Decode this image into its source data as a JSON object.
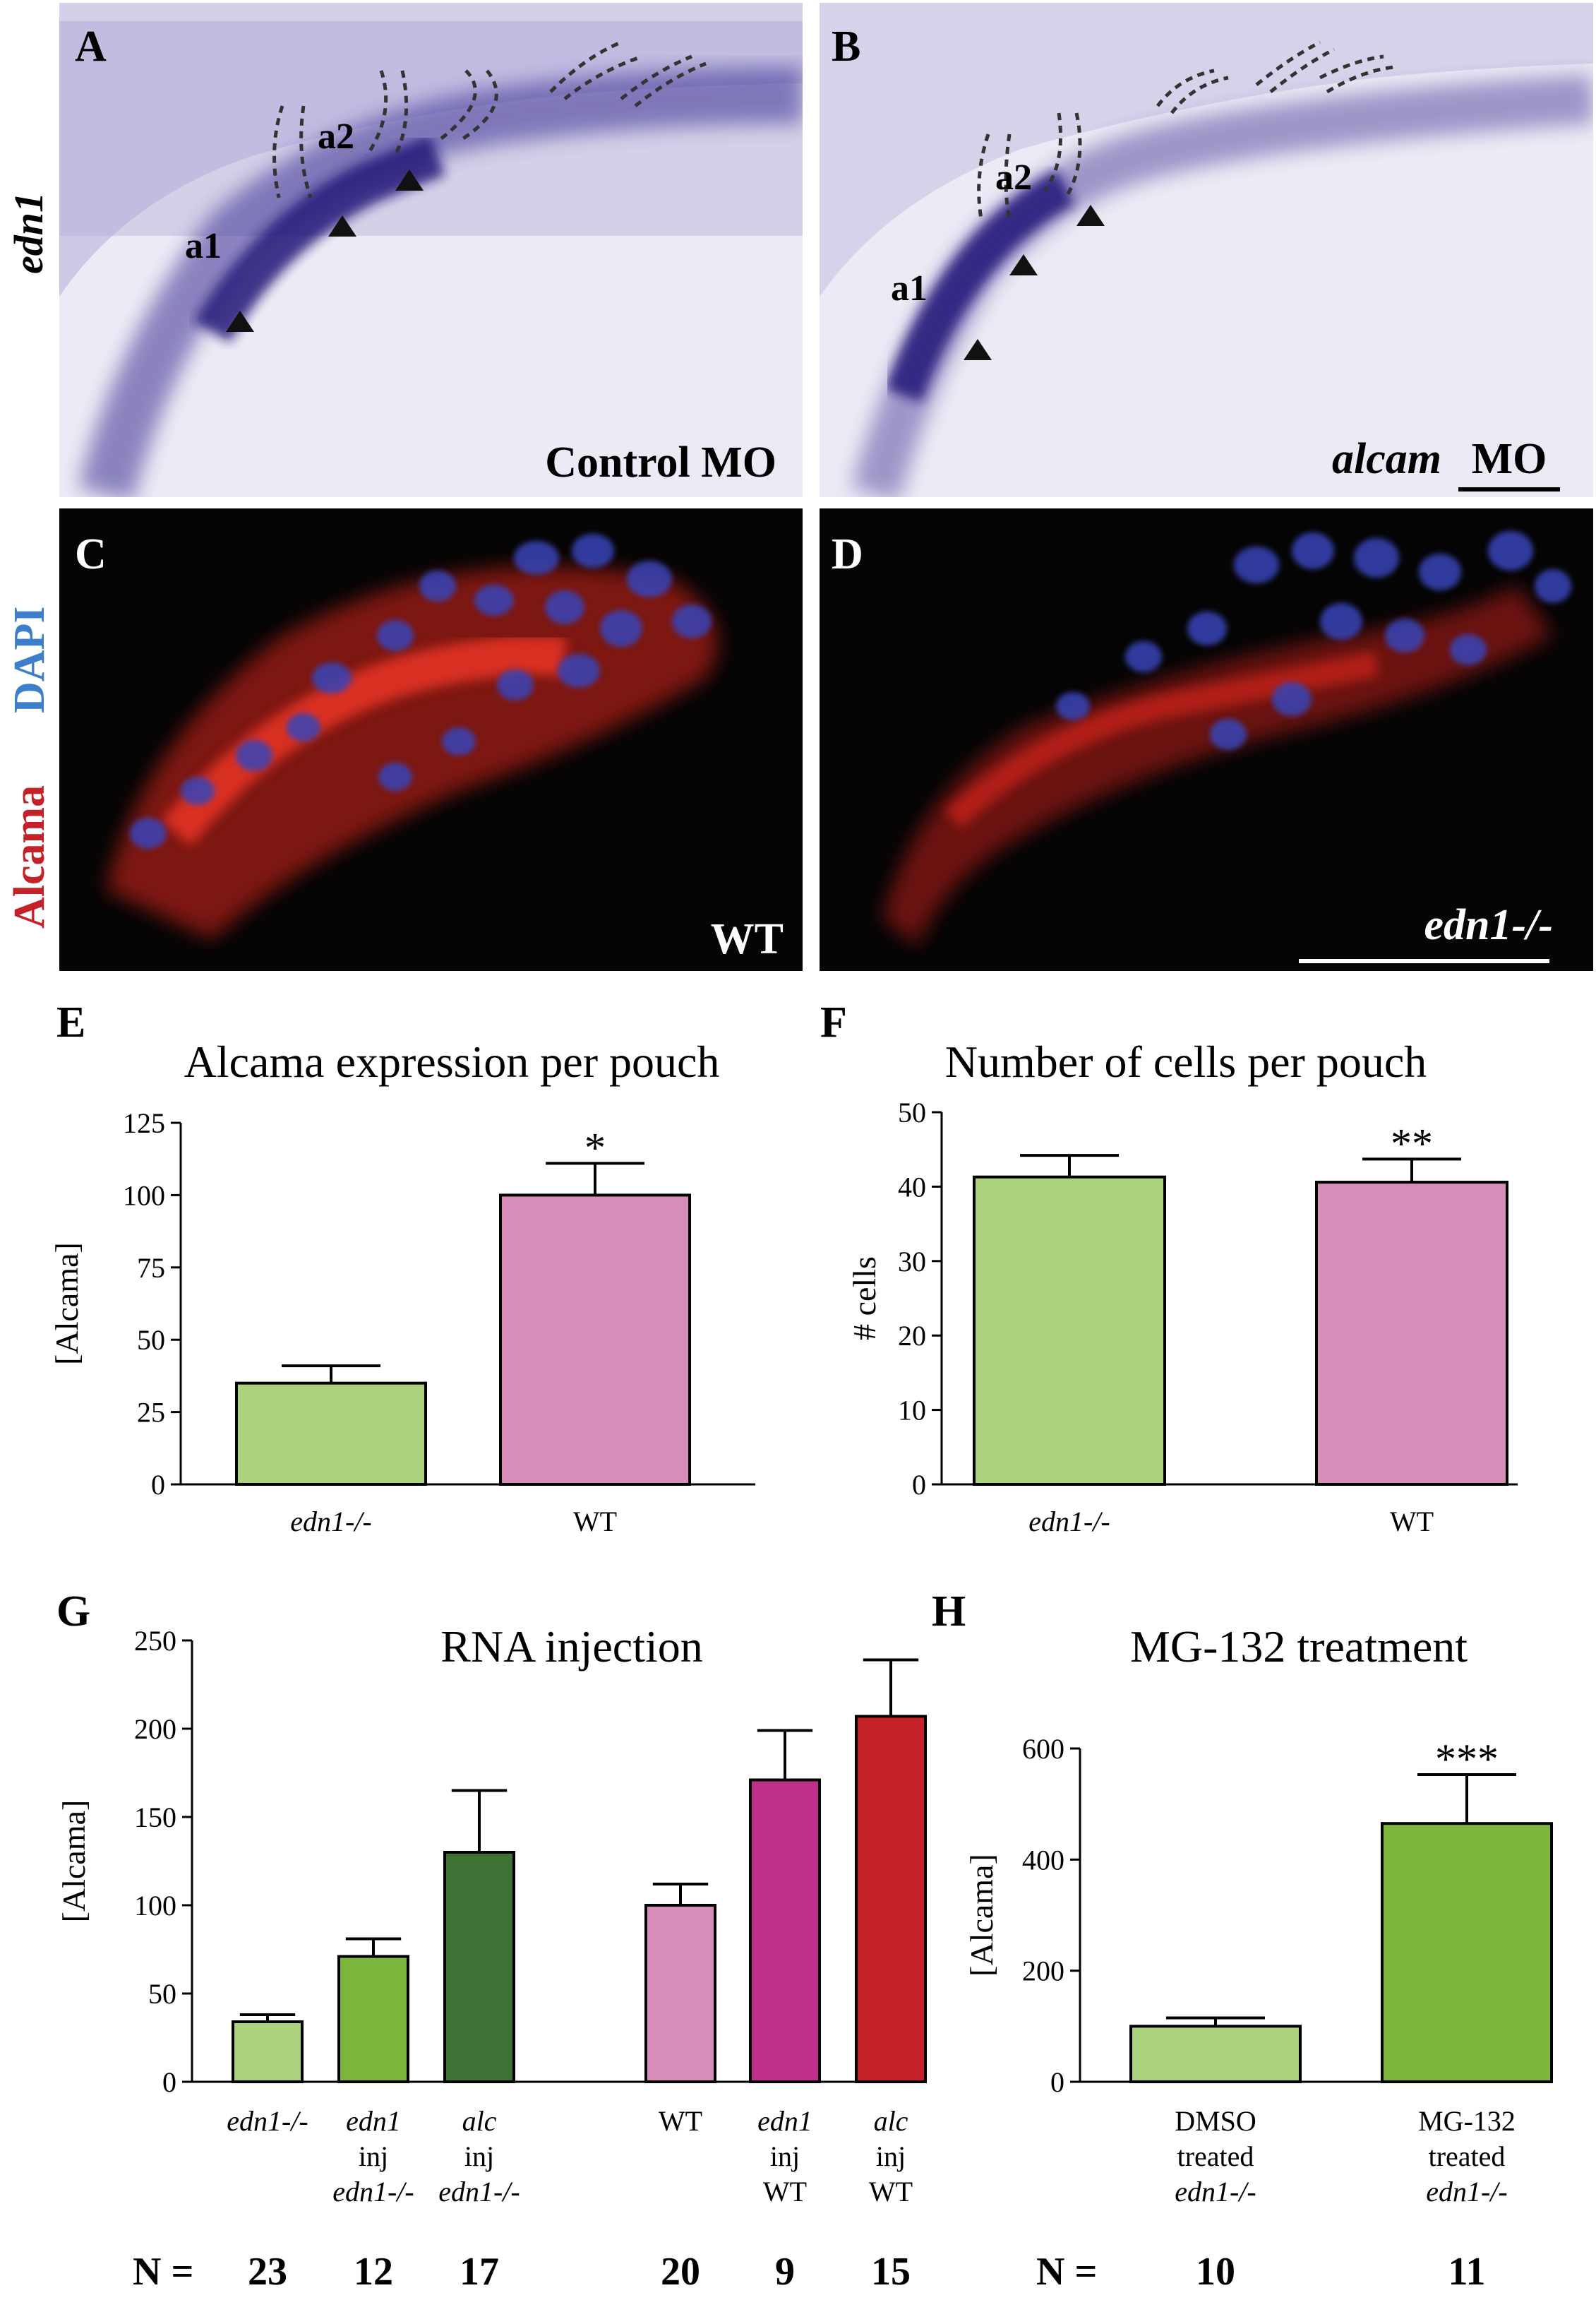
{
  "panels": {
    "A": {
      "letter": "A",
      "side_label": "edn1",
      "arch_labels": [
        "a1",
        "a2"
      ],
      "caption": "Control MO"
    },
    "B": {
      "letter": "B",
      "arch_labels": [
        "a1",
        "a2"
      ],
      "caption_italic": "alcam",
      "caption_rest": "MO"
    },
    "C": {
      "letter": "C",
      "side_label_red": "Alcama",
      "side_label_blue": "DAPI",
      "caption": "WT"
    },
    "D": {
      "letter": "D",
      "caption": "edn1-/-"
    },
    "E": {
      "letter": "E"
    },
    "F": {
      "letter": "F"
    },
    "G": {
      "letter": "G",
      "n_prefix": "N ="
    },
    "H": {
      "letter": "H",
      "n_prefix": "N ="
    }
  },
  "colors": {
    "light_green": "#acd27e",
    "mid_green": "#7db63c",
    "dark_green": "#3e7134",
    "light_pink": "#d78db7",
    "magenta": "#c02f8b",
    "red": "#c42228",
    "ish_bg": "#ecebf5",
    "ish_stain": "#3a2d93",
    "fluor_bg": "#050505",
    "alcama_red": "#e0261f",
    "dapi_blue": "#3844b8"
  },
  "chart_data": [
    {
      "panel": "E",
      "type": "bar",
      "title": "Alcama expression per pouch",
      "ylabel": "[Alcama]",
      "xlabel": "",
      "ylim": [
        0,
        125
      ],
      "yticks": [
        0,
        25,
        50,
        75,
        100,
        125
      ],
      "categories": [
        "edn1-/-",
        "WT"
      ],
      "values": [
        35,
        100
      ],
      "errors": [
        6,
        11
      ],
      "significance": [
        "",
        "*"
      ],
      "bar_colors": [
        "#acd27e",
        "#d78db7"
      ]
    },
    {
      "panel": "F",
      "type": "bar",
      "title": "Number of cells per pouch",
      "ylabel": "# cells",
      "xlabel": "",
      "ylim": [
        0,
        50
      ],
      "yticks": [
        0,
        10,
        20,
        30,
        40,
        50
      ],
      "categories": [
        "edn1-/-",
        "WT"
      ],
      "values": [
        41.3,
        40.6
      ],
      "errors": [
        2.9,
        3.1
      ],
      "significance": [
        "",
        "**"
      ],
      "bar_colors": [
        "#acd27e",
        "#d78db7"
      ]
    },
    {
      "panel": "G",
      "type": "bar",
      "title": "RNA injection",
      "ylabel": "[Alcama]",
      "xlabel": "",
      "ylim": [
        0,
        250
      ],
      "yticks": [
        0,
        50,
        100,
        150,
        200,
        250
      ],
      "categories": [
        [
          "edn1-/-"
        ],
        [
          "edn1",
          "inj",
          "edn1-/-"
        ],
        [
          "alc",
          "inj",
          "edn1-/-"
        ],
        [
          "WT"
        ],
        [
          "edn1",
          "inj",
          "WT"
        ],
        [
          "alc",
          "inj",
          "WT"
        ]
      ],
      "values": [
        34,
        71,
        130,
        100,
        171,
        207
      ],
      "errors": [
        4,
        10,
        35,
        12,
        28,
        32
      ],
      "n": [
        "23",
        "12",
        "17",
        "20",
        "9",
        "15"
      ],
      "bar_colors": [
        "#acd27e",
        "#7db63c",
        "#3e7134",
        "#d78db7",
        "#c02f8b",
        "#c42228"
      ]
    },
    {
      "panel": "H",
      "type": "bar",
      "title": "MG-132 treatment",
      "ylabel": "[Alcama]",
      "xlabel": "",
      "ylim": [
        0,
        600
      ],
      "yticks": [
        0,
        200,
        400,
        600
      ],
      "categories": [
        [
          "DMSO",
          "treated",
          "edn1-/-"
        ],
        [
          "MG-132",
          "treated",
          "edn1-/-"
        ]
      ],
      "values": [
        100,
        465
      ],
      "errors": [
        15,
        88
      ],
      "significance": [
        "",
        "***"
      ],
      "n": [
        "10",
        "11"
      ],
      "bar_colors": [
        "#acd27e",
        "#7db63c"
      ]
    }
  ]
}
